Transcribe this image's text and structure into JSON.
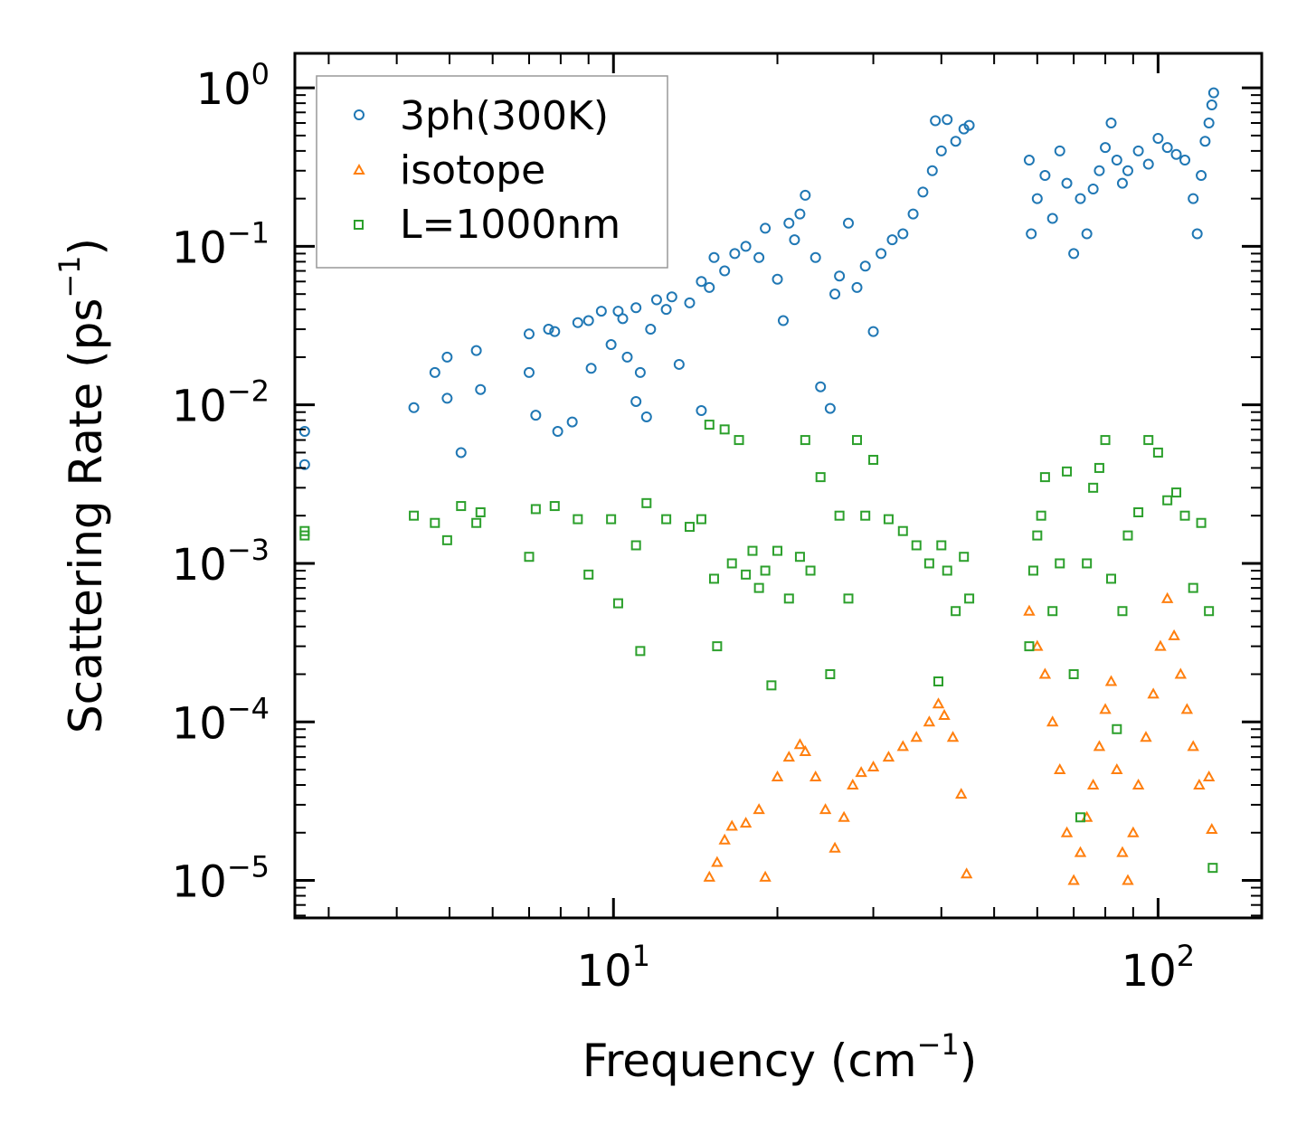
{
  "chart_data": {
    "type": "scatter",
    "xscale": "log",
    "yscale": "log",
    "xlabel": "Frequency (cm",
    "xlabel_sup": "−1",
    "xlabel_end": ")",
    "ylabel": "Scattering Rate (ps",
    "ylabel_sup": "−1",
    "ylabel_end": ")",
    "xlim": [
      2.6,
      155
    ],
    "ylim": [
      5.8e-06,
      1.65
    ],
    "x_ticks": [
      {
        "value": 10,
        "base": "10",
        "exp": "1"
      },
      {
        "value": 100,
        "base": "10",
        "exp": "2"
      }
    ],
    "y_ticks": [
      {
        "value": 1,
        "base": "10",
        "exp": "0"
      },
      {
        "value": 0.1,
        "base": "10",
        "exp": "−1"
      },
      {
        "value": 0.01,
        "base": "10",
        "exp": "−2"
      },
      {
        "value": 0.001,
        "base": "10",
        "exp": "−3"
      },
      {
        "value": 0.0001,
        "base": "10",
        "exp": "−4"
      },
      {
        "value": 1e-05,
        "base": "10",
        "exp": "−5"
      }
    ],
    "legend": {
      "placement": "upper-left",
      "entries": [
        {
          "label": "3ph(300K)",
          "marker": "circle",
          "color": "#1f77b4"
        },
        {
          "label": "isotope",
          "marker": "triangle",
          "color": "#ff7f0e"
        },
        {
          "label": "L=1000nm",
          "marker": "square",
          "color": "#2ca02c"
        }
      ]
    },
    "series": [
      {
        "name": "3ph(300K)",
        "marker": "circle",
        "color": "#1f77b4",
        "points": [
          [
            2.71,
            0.0068
          ],
          [
            2.71,
            0.0042
          ],
          [
            4.3,
            0.0096
          ],
          [
            4.7,
            0.016
          ],
          [
            4.95,
            0.011
          ],
          [
            4.95,
            0.02
          ],
          [
            5.25,
            0.005
          ],
          [
            5.6,
            0.022
          ],
          [
            5.7,
            0.0125
          ],
          [
            7.0,
            0.028
          ],
          [
            7.0,
            0.016
          ],
          [
            7.2,
            0.0086
          ],
          [
            7.6,
            0.03
          ],
          [
            7.8,
            0.029
          ],
          [
            7.9,
            0.0068
          ],
          [
            8.4,
            0.0078
          ],
          [
            8.6,
            0.033
          ],
          [
            9.0,
            0.034
          ],
          [
            9.1,
            0.017
          ],
          [
            9.5,
            0.039
          ],
          [
            9.9,
            0.024
          ],
          [
            10.2,
            0.039
          ],
          [
            10.4,
            0.035
          ],
          [
            10.6,
            0.02
          ],
          [
            11.0,
            0.041
          ],
          [
            11.0,
            0.0105
          ],
          [
            11.2,
            0.016
          ],
          [
            11.5,
            0.0084
          ],
          [
            11.7,
            0.03
          ],
          [
            12.0,
            0.046
          ],
          [
            12.5,
            0.04
          ],
          [
            12.8,
            0.048
          ],
          [
            13.2,
            0.018
          ],
          [
            13.8,
            0.044
          ],
          [
            14.5,
            0.06
          ],
          [
            14.5,
            0.0092
          ],
          [
            15.0,
            0.055
          ],
          [
            15.3,
            0.085
          ],
          [
            16.0,
            0.07
          ],
          [
            16.7,
            0.09
          ],
          [
            17.5,
            0.1
          ],
          [
            18.5,
            0.085
          ],
          [
            19.0,
            0.13
          ],
          [
            20.0,
            0.062
          ],
          [
            20.5,
            0.034
          ],
          [
            21.0,
            0.14
          ],
          [
            21.5,
            0.11
          ],
          [
            22.0,
            0.16
          ],
          [
            22.5,
            0.21
          ],
          [
            23.5,
            0.085
          ],
          [
            24.0,
            0.013
          ],
          [
            25.0,
            0.0095
          ],
          [
            25.5,
            0.05
          ],
          [
            26.0,
            0.065
          ],
          [
            27.0,
            0.14
          ],
          [
            28.0,
            0.055
          ],
          [
            29.0,
            0.075
          ],
          [
            30.0,
            0.029
          ],
          [
            31.0,
            0.09
          ],
          [
            32.5,
            0.11
          ],
          [
            34.0,
            0.12
          ],
          [
            35.5,
            0.16
          ],
          [
            37.0,
            0.22
          ],
          [
            38.5,
            0.3
          ],
          [
            39.0,
            0.62
          ],
          [
            40.0,
            0.4
          ],
          [
            41.0,
            0.63
          ],
          [
            42.5,
            0.46
          ],
          [
            44.0,
            0.55
          ],
          [
            45.0,
            0.58
          ],
          [
            58.0,
            0.35
          ],
          [
            58.5,
            0.12
          ],
          [
            60.0,
            0.2
          ],
          [
            62.0,
            0.28
          ],
          [
            64.0,
            0.15
          ],
          [
            66.0,
            0.4
          ],
          [
            68.0,
            0.25
          ],
          [
            70.0,
            0.09
          ],
          [
            72.0,
            0.2
          ],
          [
            74.0,
            0.12
          ],
          [
            76.0,
            0.23
          ],
          [
            78.0,
            0.3
          ],
          [
            80.0,
            0.42
          ],
          [
            82.0,
            0.6
          ],
          [
            84.0,
            0.35
          ],
          [
            86.0,
            0.25
          ],
          [
            88.0,
            0.3
          ],
          [
            92.0,
            0.4
          ],
          [
            96.0,
            0.33
          ],
          [
            100.0,
            0.48
          ],
          [
            104.0,
            0.42
          ],
          [
            108.0,
            0.38
          ],
          [
            112.0,
            0.35
          ],
          [
            116.0,
            0.2
          ],
          [
            118.0,
            0.12
          ],
          [
            120.0,
            0.28
          ],
          [
            122.0,
            0.46
          ],
          [
            124.0,
            0.6
          ],
          [
            125.5,
            0.78
          ],
          [
            126.5,
            0.93
          ]
        ]
      },
      {
        "name": "isotope",
        "marker": "triangle",
        "color": "#ff7f0e",
        "points": [
          [
            15.0,
            1.05e-05
          ],
          [
            15.5,
            1.3e-05
          ],
          [
            16.0,
            1.8e-05
          ],
          [
            16.5,
            2.2e-05
          ],
          [
            17.5,
            2.3e-05
          ],
          [
            18.5,
            2.8e-05
          ],
          [
            19.0,
            1.05e-05
          ],
          [
            20.0,
            4.5e-05
          ],
          [
            21.0,
            6e-05
          ],
          [
            22.0,
            7.2e-05
          ],
          [
            22.5,
            6.5e-05
          ],
          [
            23.5,
            4.5e-05
          ],
          [
            24.5,
            2.8e-05
          ],
          [
            25.5,
            1.6e-05
          ],
          [
            26.5,
            2.5e-05
          ],
          [
            27.5,
            4e-05
          ],
          [
            28.5,
            4.8e-05
          ],
          [
            30.0,
            5.2e-05
          ],
          [
            32.0,
            6e-05
          ],
          [
            34.0,
            7e-05
          ],
          [
            36.0,
            8e-05
          ],
          [
            38.0,
            0.0001
          ],
          [
            39.5,
            0.00013
          ],
          [
            40.5,
            0.00011
          ],
          [
            42.0,
            8e-05
          ],
          [
            43.5,
            3.5e-05
          ],
          [
            44.5,
            1.1e-05
          ],
          [
            58.0,
            0.0005
          ],
          [
            60.0,
            0.0003
          ],
          [
            62.0,
            0.0002
          ],
          [
            64.0,
            0.0001
          ],
          [
            66.0,
            5e-05
          ],
          [
            68.0,
            2e-05
          ],
          [
            70.0,
            1e-05
          ],
          [
            72.0,
            1.5e-05
          ],
          [
            74.0,
            2.5e-05
          ],
          [
            76.0,
            4e-05
          ],
          [
            78.0,
            7e-05
          ],
          [
            80.0,
            0.00012
          ],
          [
            82.0,
            0.00018
          ],
          [
            84.0,
            5e-05
          ],
          [
            86.0,
            1.5e-05
          ],
          [
            88.0,
            1e-05
          ],
          [
            90.0,
            2e-05
          ],
          [
            92.0,
            4e-05
          ],
          [
            95.0,
            8e-05
          ],
          [
            98.0,
            0.00015
          ],
          [
            101.0,
            0.0003
          ],
          [
            104.0,
            0.0006
          ],
          [
            107.0,
            0.00035
          ],
          [
            110.0,
            0.0002
          ],
          [
            113.0,
            0.00012
          ],
          [
            116.0,
            7e-05
          ],
          [
            119.0,
            4e-05
          ],
          [
            124.0,
            4.5e-05
          ],
          [
            125.5,
            2.1e-05
          ]
        ]
      },
      {
        "name": "L=1000nm",
        "marker": "square",
        "color": "#2ca02c",
        "points": [
          [
            2.71,
            0.0016
          ],
          [
            2.71,
            0.0015
          ],
          [
            4.3,
            0.002
          ],
          [
            4.7,
            0.0018
          ],
          [
            4.95,
            0.0014
          ],
          [
            5.25,
            0.0023
          ],
          [
            5.6,
            0.0018
          ],
          [
            5.7,
            0.0021
          ],
          [
            7.0,
            0.0011
          ],
          [
            7.2,
            0.0022
          ],
          [
            7.8,
            0.0023
          ],
          [
            8.6,
            0.0019
          ],
          [
            9.0,
            0.00085
          ],
          [
            9.9,
            0.0019
          ],
          [
            10.2,
            0.00056
          ],
          [
            11.0,
            0.0013
          ],
          [
            11.2,
            0.00028
          ],
          [
            11.5,
            0.0024
          ],
          [
            12.5,
            0.0019
          ],
          [
            13.8,
            0.0017
          ],
          [
            14.5,
            0.0019
          ],
          [
            15.0,
            0.0075
          ],
          [
            15.3,
            0.0008
          ],
          [
            15.5,
            0.0003
          ],
          [
            16.0,
            0.007
          ],
          [
            16.5,
            0.001
          ],
          [
            17.0,
            0.006
          ],
          [
            17.5,
            0.00085
          ],
          [
            18.0,
            0.0012
          ],
          [
            18.5,
            0.0007
          ],
          [
            19.0,
            0.0009
          ],
          [
            19.5,
            0.00017
          ],
          [
            20.0,
            0.0012
          ],
          [
            21.0,
            0.0006
          ],
          [
            22.0,
            0.0011
          ],
          [
            22.5,
            0.006
          ],
          [
            23.0,
            0.0009
          ],
          [
            24.0,
            0.0035
          ],
          [
            25.0,
            0.0002
          ],
          [
            26.0,
            0.002
          ],
          [
            27.0,
            0.0006
          ],
          [
            28.0,
            0.006
          ],
          [
            29.0,
            0.002
          ],
          [
            30.0,
            0.0045
          ],
          [
            32.0,
            0.0019
          ],
          [
            34.0,
            0.0016
          ],
          [
            36.0,
            0.0013
          ],
          [
            38.0,
            0.001
          ],
          [
            39.5,
            0.00018
          ],
          [
            40.0,
            0.0013
          ],
          [
            41.0,
            0.0009
          ],
          [
            42.5,
            0.0005
          ],
          [
            44.0,
            0.0011
          ],
          [
            45.0,
            0.0006
          ],
          [
            58.0,
            0.0003
          ],
          [
            59.0,
            0.0009
          ],
          [
            60.0,
            0.0015
          ],
          [
            61.0,
            0.002
          ],
          [
            62.0,
            0.0035
          ],
          [
            64.0,
            0.0005
          ],
          [
            66.0,
            0.001
          ],
          [
            68.0,
            0.0038
          ],
          [
            70.0,
            0.0002
          ],
          [
            72.0,
            2.5e-05
          ],
          [
            74.0,
            0.001
          ],
          [
            76.0,
            0.003
          ],
          [
            78.0,
            0.004
          ],
          [
            80.0,
            0.006
          ],
          [
            82.0,
            0.0008
          ],
          [
            84.0,
            9e-05
          ],
          [
            86.0,
            0.0005
          ],
          [
            88.0,
            0.0015
          ],
          [
            92.0,
            0.0021
          ],
          [
            96.0,
            0.006
          ],
          [
            100.0,
            0.005
          ],
          [
            104.0,
            0.0025
          ],
          [
            108.0,
            0.0028
          ],
          [
            112.0,
            0.002
          ],
          [
            116.0,
            0.0007
          ],
          [
            120.0,
            0.0018
          ],
          [
            124.0,
            0.0005
          ],
          [
            126.0,
            1.2e-05
          ]
        ]
      }
    ]
  }
}
